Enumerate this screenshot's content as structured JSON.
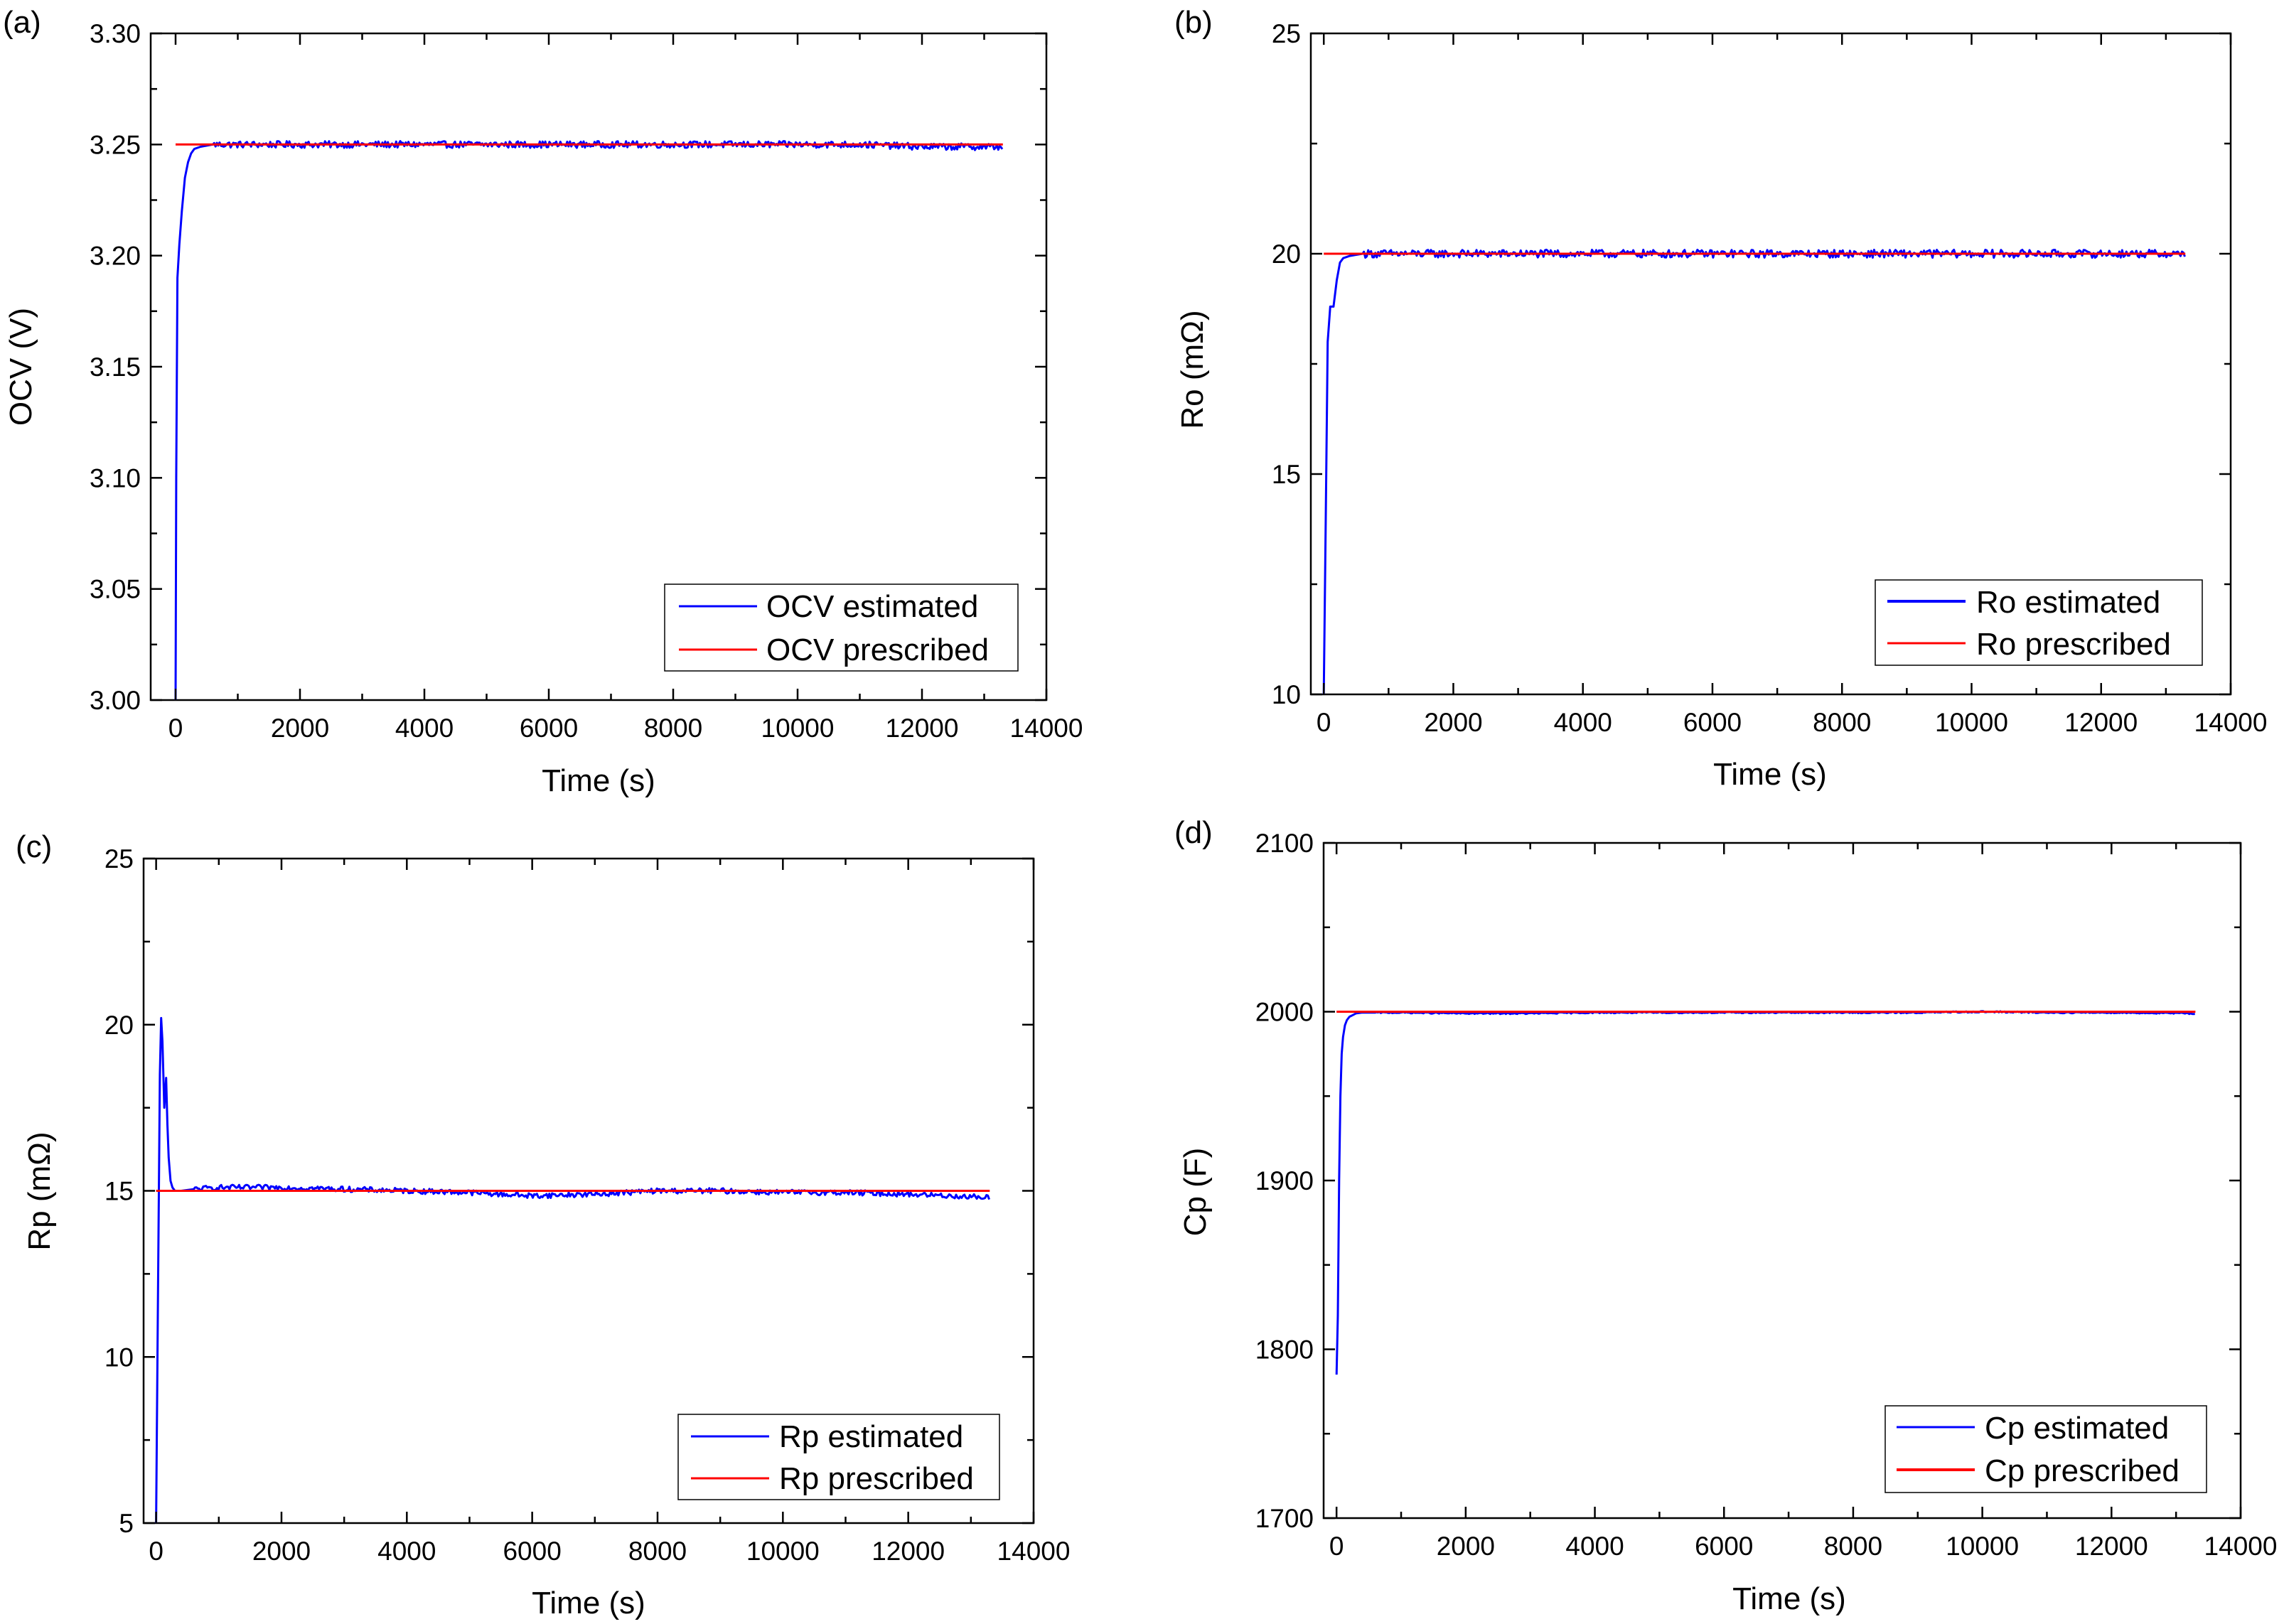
{
  "figure": {
    "description_panels": [
      "(a)",
      "(b)",
      "(c)",
      "(d)"
    ]
  },
  "chart_data": [
    {
      "type": "line",
      "panel": "(a)",
      "title": "",
      "xlabel": "Time (s)",
      "ylabel": "OCV (V)",
      "xlim": [
        -400,
        14000
      ],
      "ylim": [
        3.0,
        3.3
      ],
      "xticks": [
        0,
        2000,
        4000,
        6000,
        8000,
        10000,
        12000,
        14000
      ],
      "yticks": [
        3.0,
        3.05,
        3.1,
        3.15,
        3.2,
        3.25,
        3.3
      ],
      "ytick_labels": [
        "3.00",
        "3.05",
        "3.10",
        "3.15",
        "3.20",
        "3.25",
        "3.30"
      ],
      "legend_position": "bottom-right",
      "series": [
        {
          "name": "OCV estimated",
          "color": "#0000ff",
          "kind": "estimated",
          "x": [
            0,
            10,
            30,
            60,
            100,
            150,
            200,
            250,
            300,
            400,
            600,
            1000,
            2000,
            3000,
            4000,
            5000,
            6000,
            7000,
            8000,
            9000,
            10000,
            11000,
            12000,
            13300
          ],
          "y": [
            3.0,
            3.1,
            3.19,
            3.205,
            3.22,
            3.235,
            3.242,
            3.246,
            3.248,
            3.249,
            3.25,
            3.25,
            3.25,
            3.25,
            3.25,
            3.25,
            3.25,
            3.25,
            3.25,
            3.25,
            3.25,
            3.25,
            3.249,
            3.249
          ],
          "noise": 0.0015
        },
        {
          "name": "OCV prescribed",
          "color": "#ff0000",
          "kind": "prescribed",
          "x": [
            0,
            13300
          ],
          "y": [
            3.25,
            3.25
          ]
        }
      ]
    },
    {
      "type": "line",
      "panel": "(b)",
      "title": "",
      "xlabel": "Time (s)",
      "ylabel": "Ro (mΩ)",
      "xlim": [
        -200,
        14000
      ],
      "ylim": [
        10,
        25
      ],
      "xticks": [
        0,
        2000,
        4000,
        6000,
        8000,
        10000,
        12000,
        14000
      ],
      "yticks": [
        10,
        15,
        20,
        25
      ],
      "ytick_labels": [
        "10",
        "15",
        "20",
        "25"
      ],
      "legend_position": "bottom-right",
      "series": [
        {
          "name": "Ro estimated",
          "color": "#0000ff",
          "kind": "estimated",
          "x": [
            0,
            30,
            60,
            100,
            150,
            200,
            250,
            300,
            400,
            600,
            1000,
            2000,
            3000,
            4000,
            5000,
            6000,
            7000,
            8000,
            9000,
            10000,
            11000,
            12000,
            13300
          ],
          "y": [
            10.0,
            14.0,
            18.0,
            18.8,
            18.8,
            19.4,
            19.8,
            19.9,
            19.95,
            20.0,
            20.0,
            20.0,
            20.0,
            20.0,
            20.0,
            20.0,
            20.0,
            20.0,
            20.0,
            20.0,
            20.0,
            20.0,
            20.0
          ],
          "noise": 0.09
        },
        {
          "name": "Ro prescribed",
          "color": "#ff0000",
          "kind": "prescribed",
          "x": [
            0,
            13300
          ],
          "y": [
            20,
            20
          ]
        }
      ]
    },
    {
      "type": "line",
      "panel": "(c)",
      "title": "",
      "xlabel": "Time (s)",
      "ylabel": "Rp (mΩ)",
      "xlim": [
        -200,
        14000
      ],
      "ylim": [
        5,
        25
      ],
      "xticks": [
        0,
        2000,
        4000,
        6000,
        8000,
        10000,
        12000,
        14000
      ],
      "yticks": [
        5,
        10,
        15,
        20,
        25
      ],
      "ytick_labels": [
        "5",
        "10",
        "15",
        "20",
        "25"
      ],
      "legend_position": "bottom-right",
      "series": [
        {
          "name": "Rp estimated",
          "color": "#0000ff",
          "kind": "estimated",
          "x": [
            0,
            30,
            60,
            80,
            100,
            130,
            160,
            180,
            200,
            230,
            260,
            300,
            400,
            600,
            1000,
            2000,
            3000,
            4000,
            5000,
            6000,
            7000,
            8000,
            9000,
            10000,
            11000,
            12000,
            13300
          ],
          "y": [
            5.0,
            12.0,
            18.5,
            20.2,
            19.5,
            17.5,
            18.4,
            17.0,
            16.0,
            15.3,
            15.1,
            15.0,
            15.0,
            15.05,
            15.1,
            15.1,
            15.05,
            15.0,
            14.95,
            14.85,
            14.9,
            15.0,
            15.0,
            14.95,
            14.95,
            14.9,
            14.8
          ],
          "noise": 0.08
        },
        {
          "name": "Rp prescribed",
          "color": "#ff0000",
          "kind": "prescribed",
          "x": [
            0,
            13300
          ],
          "y": [
            15,
            15
          ]
        }
      ]
    },
    {
      "type": "line",
      "panel": "(d)",
      "title": "",
      "xlabel": "Time (s)",
      "ylabel": "Cp (F)",
      "xlim": [
        -200,
        14000
      ],
      "ylim": [
        1700,
        2100
      ],
      "xticks": [
        0,
        2000,
        4000,
        6000,
        8000,
        10000,
        12000,
        14000
      ],
      "yticks": [
        1700,
        1800,
        1900,
        2000,
        2100
      ],
      "ytick_labels": [
        "1700",
        "1800",
        "1900",
        "2000",
        "2100"
      ],
      "legend_position": "bottom-right",
      "series": [
        {
          "name": "Cp estimated",
          "color": "#0000ff",
          "kind": "estimated",
          "x": [
            0,
            20,
            40,
            60,
            80,
            100,
            130,
            160,
            200,
            250,
            300,
            400,
            600,
            1000,
            2000,
            3000,
            4000,
            5000,
            6000,
            7000,
            8000,
            9000,
            10000,
            11000,
            12000,
            13300
          ],
          "y": [
            1785,
            1820,
            1900,
            1950,
            1975,
            1985,
            1992,
            1995,
            1997,
            1998,
            1999,
            1999.5,
            1999.5,
            1999.5,
            1999,
            1999,
            1999.5,
            1999.5,
            1999.5,
            1999.5,
            1999.5,
            1999.5,
            2000,
            1999.5,
            1999.5,
            1999
          ],
          "noise": 0.4
        },
        {
          "name": "Cp prescribed",
          "color": "#ff0000",
          "kind": "prescribed",
          "x": [
            0,
            13300
          ],
          "y": [
            2000,
            2000
          ]
        }
      ]
    }
  ]
}
